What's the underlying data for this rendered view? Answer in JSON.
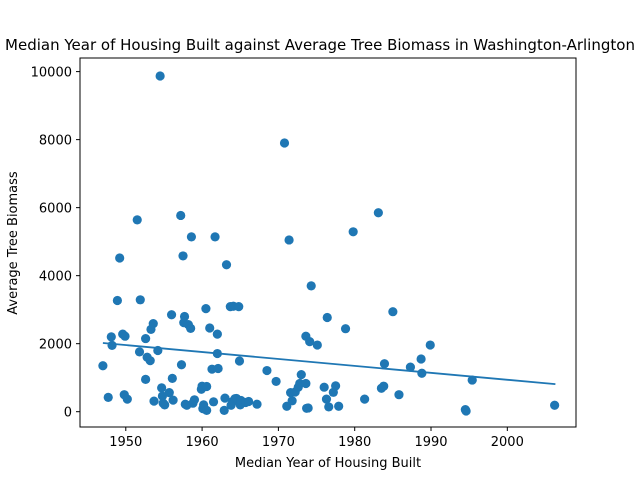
{
  "chart_data": {
    "type": "scatter",
    "title": "Median Year of Housing Built against Average Tree Biomass in Washington-Arlington",
    "xlabel": "Median Year of Housing Built",
    "ylabel": "Average Tree Biomass",
    "xlim": [
      1944,
      2009
    ],
    "ylim": [
      -450,
      10400
    ],
    "xticks": [
      1950,
      1960,
      1970,
      1980,
      1990,
      2000
    ],
    "yticks": [
      0,
      2000,
      4000,
      6000,
      8000,
      10000
    ],
    "grid": false,
    "color": "#1f77b4",
    "points": [
      [
        1947.0,
        1350
      ],
      [
        1947.7,
        420
      ],
      [
        1948.1,
        2200
      ],
      [
        1948.2,
        1950
      ],
      [
        1948.9,
        3270
      ],
      [
        1949.2,
        4520
      ],
      [
        1949.6,
        2280
      ],
      [
        1949.9,
        2220
      ],
      [
        1949.8,
        500
      ],
      [
        1950.2,
        370
      ],
      [
        1951.5,
        5640
      ],
      [
        1951.8,
        1760
      ],
      [
        1951.9,
        3290
      ],
      [
        1952.6,
        2150
      ],
      [
        1952.6,
        950
      ],
      [
        1952.8,
        1600
      ],
      [
        1953.2,
        1500
      ],
      [
        1953.3,
        2420
      ],
      [
        1953.6,
        2590
      ],
      [
        1953.7,
        310
      ],
      [
        1954.2,
        1800
      ],
      [
        1954.5,
        9870
      ],
      [
        1954.7,
        700
      ],
      [
        1954.8,
        460
      ],
      [
        1954.9,
        250
      ],
      [
        1955.1,
        200
      ],
      [
        1955.7,
        560
      ],
      [
        1956.0,
        2850
      ],
      [
        1956.1,
        980
      ],
      [
        1956.2,
        340
      ],
      [
        1957.2,
        5770
      ],
      [
        1957.3,
        1380
      ],
      [
        1957.5,
        4580
      ],
      [
        1957.6,
        2620
      ],
      [
        1957.7,
        2800
      ],
      [
        1957.8,
        220
      ],
      [
        1958.0,
        190
      ],
      [
        1958.2,
        2560
      ],
      [
        1958.5,
        2450
      ],
      [
        1958.6,
        5140
      ],
      [
        1958.8,
        250
      ],
      [
        1959.0,
        350
      ],
      [
        1959.9,
        660
      ],
      [
        1960.0,
        750
      ],
      [
        1960.1,
        90
      ],
      [
        1960.2,
        200
      ],
      [
        1960.5,
        3030
      ],
      [
        1960.6,
        740
      ],
      [
        1960.6,
        40
      ],
      [
        1961.0,
        2460
      ],
      [
        1961.3,
        1250
      ],
      [
        1961.5,
        290
      ],
      [
        1961.7,
        5140
      ],
      [
        1962.0,
        1710
      ],
      [
        1962.0,
        2280
      ],
      [
        1962.1,
        1270
      ],
      [
        1962.9,
        40
      ],
      [
        1963.0,
        400
      ],
      [
        1963.2,
        4320
      ],
      [
        1963.7,
        3090
      ],
      [
        1963.8,
        190
      ],
      [
        1964.0,
        300
      ],
      [
        1964.1,
        3100
      ],
      [
        1964.3,
        380
      ],
      [
        1964.5,
        390
      ],
      [
        1964.8,
        3090
      ],
      [
        1964.9,
        1490
      ],
      [
        1965.0,
        200
      ],
      [
        1965.1,
        330
      ],
      [
        1965.7,
        270
      ],
      [
        1966.1,
        300
      ],
      [
        1967.2,
        220
      ],
      [
        1968.5,
        1210
      ],
      [
        1969.7,
        890
      ],
      [
        1970.8,
        7900
      ],
      [
        1971.1,
        160
      ],
      [
        1971.4,
        5050
      ],
      [
        1971.6,
        560
      ],
      [
        1971.8,
        320
      ],
      [
        1972.2,
        580
      ],
      [
        1972.6,
        720
      ],
      [
        1972.8,
        830
      ],
      [
        1973.0,
        1090
      ],
      [
        1973.6,
        830
      ],
      [
        1973.6,
        2220
      ],
      [
        1973.7,
        100
      ],
      [
        1973.9,
        110
      ],
      [
        1974.1,
        2060
      ],
      [
        1974.3,
        3700
      ],
      [
        1975.1,
        1960
      ],
      [
        1976.0,
        720
      ],
      [
        1976.3,
        370
      ],
      [
        1976.4,
        2770
      ],
      [
        1976.6,
        140
      ],
      [
        1977.2,
        570
      ],
      [
        1977.5,
        760
      ],
      [
        1977.9,
        160
      ],
      [
        1978.8,
        2440
      ],
      [
        1979.8,
        5290
      ],
      [
        1981.3,
        370
      ],
      [
        1983.1,
        5850
      ],
      [
        1983.5,
        690
      ],
      [
        1983.8,
        750
      ],
      [
        1983.9,
        1410
      ],
      [
        1985.0,
        2940
      ],
      [
        1985.8,
        500
      ],
      [
        1987.3,
        1310
      ],
      [
        1988.7,
        1550
      ],
      [
        1988.8,
        1130
      ],
      [
        1989.9,
        1960
      ],
      [
        1994.5,
        60
      ],
      [
        1994.6,
        20
      ],
      [
        1995.4,
        930
      ],
      [
        2006.2,
        190
      ]
    ],
    "trendline": {
      "x": [
        1947.0,
        2006.3
      ],
      "y": [
        2020,
        810
      ]
    }
  }
}
